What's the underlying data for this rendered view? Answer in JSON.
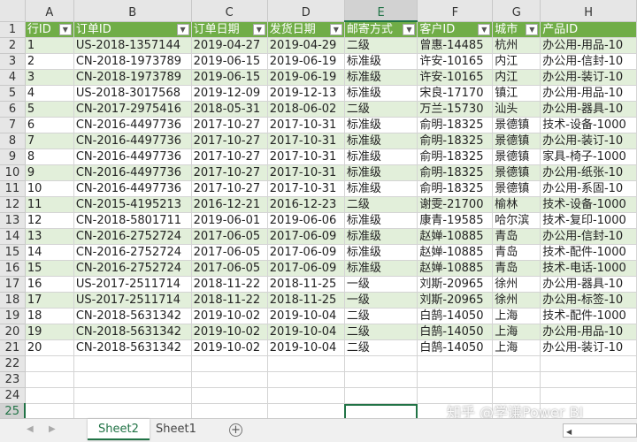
{
  "columns": [
    "A",
    "B",
    "C",
    "D",
    "E",
    "F",
    "G",
    "H"
  ],
  "headers": [
    "行ID",
    "订单ID",
    "订单日期",
    "发货日期",
    "邮寄方式",
    "客户ID",
    "城市",
    "产品ID"
  ],
  "rows": [
    [
      "1",
      "US-2018-1357144",
      "2019-04-27",
      "2019-04-29",
      "二级",
      "曾惠-14485",
      "杭州",
      "办公用-用品-10"
    ],
    [
      "2",
      "CN-2018-1973789",
      "2019-06-15",
      "2019-06-19",
      "标准级",
      "许安-10165",
      "内江",
      "办公用-信封-10"
    ],
    [
      "3",
      "CN-2018-1973789",
      "2019-06-15",
      "2019-06-19",
      "标准级",
      "许安-10165",
      "内江",
      "办公用-装订-10"
    ],
    [
      "4",
      "US-2018-3017568",
      "2019-12-09",
      "2019-12-13",
      "标准级",
      "宋良-17170",
      "镇江",
      "办公用-用品-10"
    ],
    [
      "5",
      "CN-2017-2975416",
      "2018-05-31",
      "2018-06-02",
      "二级",
      "万兰-15730",
      "汕头",
      "办公用-器具-10"
    ],
    [
      "6",
      "CN-2016-4497736",
      "2017-10-27",
      "2017-10-31",
      "标准级",
      "俞明-18325",
      "景德镇",
      "技术-设备-1000"
    ],
    [
      "7",
      "CN-2016-4497736",
      "2017-10-27",
      "2017-10-31",
      "标准级",
      "俞明-18325",
      "景德镇",
      "办公用-装订-10"
    ],
    [
      "8",
      "CN-2016-4497736",
      "2017-10-27",
      "2017-10-31",
      "标准级",
      "俞明-18325",
      "景德镇",
      "家具-椅子-1000"
    ],
    [
      "9",
      "CN-2016-4497736",
      "2017-10-27",
      "2017-10-31",
      "标准级",
      "俞明-18325",
      "景德镇",
      "办公用-纸张-10"
    ],
    [
      "10",
      "CN-2016-4497736",
      "2017-10-27",
      "2017-10-31",
      "标准级",
      "俞明-18325",
      "景德镇",
      "办公用-系固-10"
    ],
    [
      "11",
      "CN-2015-4195213",
      "2016-12-21",
      "2016-12-23",
      "二级",
      "谢雯-21700",
      "榆林",
      "技术-设备-1000"
    ],
    [
      "12",
      "CN-2018-5801711",
      "2019-06-01",
      "2019-06-06",
      "标准级",
      "康青-19585",
      "哈尔滨",
      "技术-复印-1000"
    ],
    [
      "13",
      "CN-2016-2752724",
      "2017-06-05",
      "2017-06-09",
      "标准级",
      "赵婵-10885",
      "青岛",
      "办公用-信封-10"
    ],
    [
      "14",
      "CN-2016-2752724",
      "2017-06-05",
      "2017-06-09",
      "标准级",
      "赵婵-10885",
      "青岛",
      "技术-配件-1000"
    ],
    [
      "15",
      "CN-2016-2752724",
      "2017-06-05",
      "2017-06-09",
      "标准级",
      "赵婵-10885",
      "青岛",
      "技术-电话-1000"
    ],
    [
      "16",
      "US-2017-2511714",
      "2018-11-22",
      "2018-11-25",
      "一级",
      "刘斯-20965",
      "徐州",
      "办公用-器具-10"
    ],
    [
      "17",
      "US-2017-2511714",
      "2018-11-22",
      "2018-11-25",
      "一级",
      "刘斯-20965",
      "徐州",
      "办公用-标签-10"
    ],
    [
      "18",
      "CN-2018-5631342",
      "2019-10-02",
      "2019-10-04",
      "二级",
      "白鹄-14050",
      "上海",
      "技术-配件-1000"
    ],
    [
      "19",
      "CN-2018-5631342",
      "2019-10-02",
      "2019-10-04",
      "二级",
      "白鹄-14050",
      "上海",
      "办公用-用品-10"
    ],
    [
      "20",
      "CN-2018-5631342",
      "2019-10-02",
      "2019-10-04",
      "二级",
      "白鹄-14050",
      "上海",
      "办公用-装订-10"
    ]
  ],
  "row_numbers": [
    "1",
    "2",
    "3",
    "4",
    "5",
    "6",
    "7",
    "8",
    "9",
    "10",
    "11",
    "12",
    "13",
    "14",
    "15",
    "16",
    "17",
    "18",
    "19",
    "20",
    "21",
    "22",
    "23",
    "24",
    "25"
  ],
  "sheets": [
    "Sheet2",
    "Sheet1"
  ],
  "active_sheet": "Sheet2",
  "active_cell": "E25",
  "watermark": "知乎 @学谦Power BI",
  "colors": {
    "header_fill": "#70ad47",
    "band_fill": "#e2efda",
    "accent": "#217346"
  }
}
